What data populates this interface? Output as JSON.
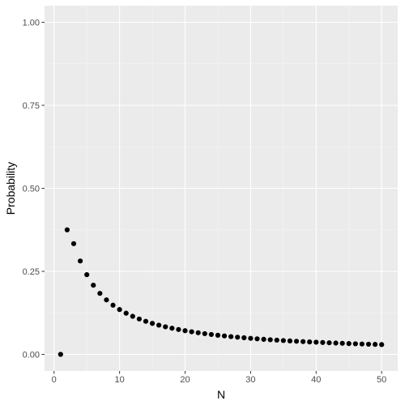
{
  "chart_data": {
    "type": "scatter",
    "xlabel": "N",
    "ylabel": "Probability",
    "xlim": [
      -1.45,
      52.45
    ],
    "ylim": [
      -0.05,
      1.05
    ],
    "x_ticks": [
      0,
      10,
      20,
      30,
      40,
      50
    ],
    "x_tick_labels": [
      "0",
      "10",
      "20",
      "30",
      "40",
      "50"
    ],
    "y_ticks": [
      0,
      0.25,
      0.5,
      0.75,
      1
    ],
    "y_tick_labels": [
      "0.00",
      "0.25",
      "0.50",
      "0.75",
      "1.00"
    ],
    "grid": true,
    "colors": {
      "panel": "#ebebeb",
      "grid_major": "#ffffff",
      "grid_minor": "#f5f5f5",
      "points": "#000000",
      "ticks": "#333333"
    },
    "points": [
      {
        "x": 1,
        "y": 0.0
      },
      {
        "x": 2,
        "y": 0.375
      },
      {
        "x": 3,
        "y": 0.3333
      },
      {
        "x": 4,
        "y": 0.2813
      },
      {
        "x": 5,
        "y": 0.24
      },
      {
        "x": 6,
        "y": 0.2083
      },
      {
        "x": 7,
        "y": 0.1837
      },
      {
        "x": 8,
        "y": 0.1641
      },
      {
        "x": 9,
        "y": 0.1481
      },
      {
        "x": 10,
        "y": 0.135
      },
      {
        "x": 11,
        "y": 0.124
      },
      {
        "x": 12,
        "y": 0.1146
      },
      {
        "x": 13,
        "y": 0.1065
      },
      {
        "x": 14,
        "y": 0.0995
      },
      {
        "x": 15,
        "y": 0.0933
      },
      {
        "x": 16,
        "y": 0.0879
      },
      {
        "x": 17,
        "y": 0.083
      },
      {
        "x": 18,
        "y": 0.0787
      },
      {
        "x": 19,
        "y": 0.0748
      },
      {
        "x": 20,
        "y": 0.0713
      },
      {
        "x": 21,
        "y": 0.068
      },
      {
        "x": 22,
        "y": 0.0651
      },
      {
        "x": 23,
        "y": 0.0624
      },
      {
        "x": 24,
        "y": 0.0599
      },
      {
        "x": 25,
        "y": 0.0576
      },
      {
        "x": 26,
        "y": 0.0555
      },
      {
        "x": 27,
        "y": 0.0535
      },
      {
        "x": 28,
        "y": 0.0517
      },
      {
        "x": 29,
        "y": 0.05
      },
      {
        "x": 30,
        "y": 0.0483
      },
      {
        "x": 31,
        "y": 0.0468
      },
      {
        "x": 32,
        "y": 0.0454
      },
      {
        "x": 33,
        "y": 0.0441
      },
      {
        "x": 34,
        "y": 0.0428
      },
      {
        "x": 35,
        "y": 0.0416
      },
      {
        "x": 36,
        "y": 0.0405
      },
      {
        "x": 37,
        "y": 0.0395
      },
      {
        "x": 38,
        "y": 0.0385
      },
      {
        "x": 39,
        "y": 0.0375
      },
      {
        "x": 40,
        "y": 0.0366
      },
      {
        "x": 41,
        "y": 0.0357
      },
      {
        "x": 42,
        "y": 0.0349
      },
      {
        "x": 43,
        "y": 0.0341
      },
      {
        "x": 44,
        "y": 0.0334
      },
      {
        "x": 45,
        "y": 0.0326
      },
      {
        "x": 46,
        "y": 0.0319
      },
      {
        "x": 47,
        "y": 0.0313
      },
      {
        "x": 48,
        "y": 0.0307
      },
      {
        "x": 49,
        "y": 0.0301
      },
      {
        "x": 50,
        "y": 0.0295
      }
    ]
  }
}
